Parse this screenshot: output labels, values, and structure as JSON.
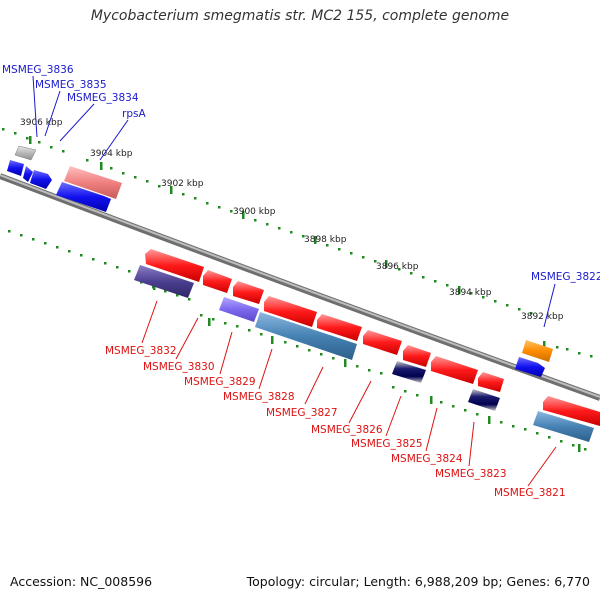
{
  "title": "Mycobacterium smegmatis str. MC2 155, complete genome",
  "footer": {
    "accession": "Accession: NC_008596",
    "stats": "Topology: circular; Length: 6,988,209 bp; Genes: 6,770"
  },
  "axis": {
    "unit": "kbp",
    "tick_labels": [
      "3906 kbp",
      "3904 kbp",
      "3902 kbp",
      "3900 kbp",
      "3898 kbp",
      "3896 kbp",
      "3894 kbp",
      "3892 kbp"
    ]
  },
  "colors": {
    "forward_strand_gene": "#1111dd",
    "reverse_strand_gene": "#ee1111",
    "label_forward": "#1a1acc",
    "label_reverse": "#dd1111",
    "backbone": "#888888",
    "tick_dots": "#1f8a1f",
    "rna_gene": "#ff8c00"
  },
  "labels": {
    "forward": [
      "MSMEG_3836",
      "MSMEG_3835",
      "MSMEG_3834",
      "rpsA",
      "MSMEG_3822"
    ],
    "reverse": [
      "MSMEG_3832",
      "MSMEG_3830",
      "MSMEG_3829",
      "MSMEG_3828",
      "MSMEG_3827",
      "MSMEG_3826",
      "MSMEG_3825",
      "MSMEG_3824",
      "MSMEG_3823",
      "MSMEG_3821"
    ]
  }
}
